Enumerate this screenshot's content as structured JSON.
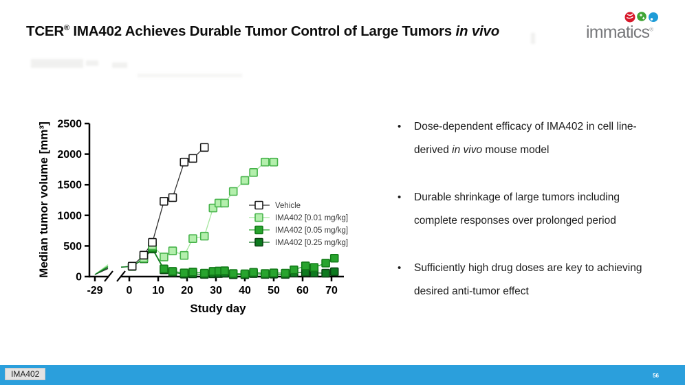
{
  "header": {
    "title": {
      "brand": "TCER",
      "reg": "®",
      "rest": " IMA402 Achieves Durable Tumor Control of Large Tumors ",
      "italic": "in vivo"
    },
    "logo": {
      "text": "immatics",
      "reg": "®"
    }
  },
  "bullets": [
    {
      "pre": "Dose-dependent efficacy of IMA402 in cell line-derived ",
      "italic": "in vivo",
      "post": " mouse model"
    },
    {
      "pre": "Durable shrinkage of large tumors including complete responses over prolonged period",
      "italic": "",
      "post": ""
    },
    {
      "pre": "Sufficiently high drug doses are key to achieving desired anti-tumor effect",
      "italic": "",
      "post": ""
    }
  ],
  "footer": {
    "badge": "IMA402",
    "page": "56",
    "bar_color": "#2B9FDC"
  },
  "chart_data": {
    "type": "scatter",
    "title": "",
    "xlabel": "Study day",
    "ylabel": "Median tumor volume [mm³]",
    "x_ticks": [
      -29,
      0,
      10,
      20,
      30,
      40,
      50,
      60,
      70
    ],
    "y_ticks": [
      0,
      500,
      1000,
      1500,
      2000,
      2500
    ],
    "ylim": [
      0,
      2500
    ],
    "axis_break": {
      "between": [
        -29,
        0
      ]
    },
    "legend_position": "inside-right",
    "grid": false,
    "series": [
      {
        "name": "Vehicle",
        "marker_fill": "#ffffff",
        "marker_stroke": "#1a1a1a",
        "line": "#333333",
        "pre_break_end": 130,
        "x": [
          1,
          5,
          8,
          12,
          15,
          19,
          22,
          26
        ],
        "y": [
          170,
          350,
          560,
          1230,
          1290,
          1870,
          1930,
          2110
        ]
      },
      {
        "name": "IMA402 [0.01 mg/kg]",
        "marker_fill": "#b4efad",
        "marker_stroke": "#46b34a",
        "line": "#a3e69c",
        "pre_break_end": 195,
        "x": [
          1,
          5,
          8,
          12,
          15,
          19,
          22,
          26,
          29,
          31,
          33,
          36,
          40,
          43,
          47,
          50
        ],
        "y": [
          170,
          300,
          505,
          320,
          420,
          345,
          620,
          660,
          1120,
          1200,
          1200,
          1390,
          1570,
          1700,
          1870,
          1870
        ]
      },
      {
        "name": "IMA402 [0.05 mg/kg]",
        "marker_fill": "#28a42e",
        "marker_stroke": "#127a18",
        "line": "#2ca832",
        "pre_break_end": 170,
        "x": [
          1,
          5,
          8,
          12,
          15,
          19,
          22,
          26,
          29,
          31,
          33,
          36,
          40,
          43,
          47,
          50,
          54,
          57,
          61,
          64,
          68,
          71
        ],
        "y": [
          168,
          295,
          465,
          125,
          85,
          60,
          75,
          55,
          85,
          90,
          95,
          50,
          45,
          70,
          50,
          60,
          55,
          110,
          175,
          150,
          220,
          300
        ]
      },
      {
        "name": "IMA402 [0.25 mg/kg]",
        "marker_fill": "#0d7a1f",
        "marker_stroke": "#0a4212",
        "line": "#107522",
        "pre_break_end": 150,
        "x": [
          1,
          5,
          8,
          12,
          15,
          19,
          22,
          26,
          29,
          31,
          33,
          36,
          40,
          43,
          47,
          50,
          54,
          57,
          61,
          64,
          68,
          71
        ],
        "y": [
          165,
          290,
          450,
          110,
          70,
          40,
          45,
          35,
          45,
          50,
          55,
          30,
          30,
          50,
          35,
          40,
          35,
          60,
          70,
          60,
          55,
          80
        ]
      }
    ]
  }
}
